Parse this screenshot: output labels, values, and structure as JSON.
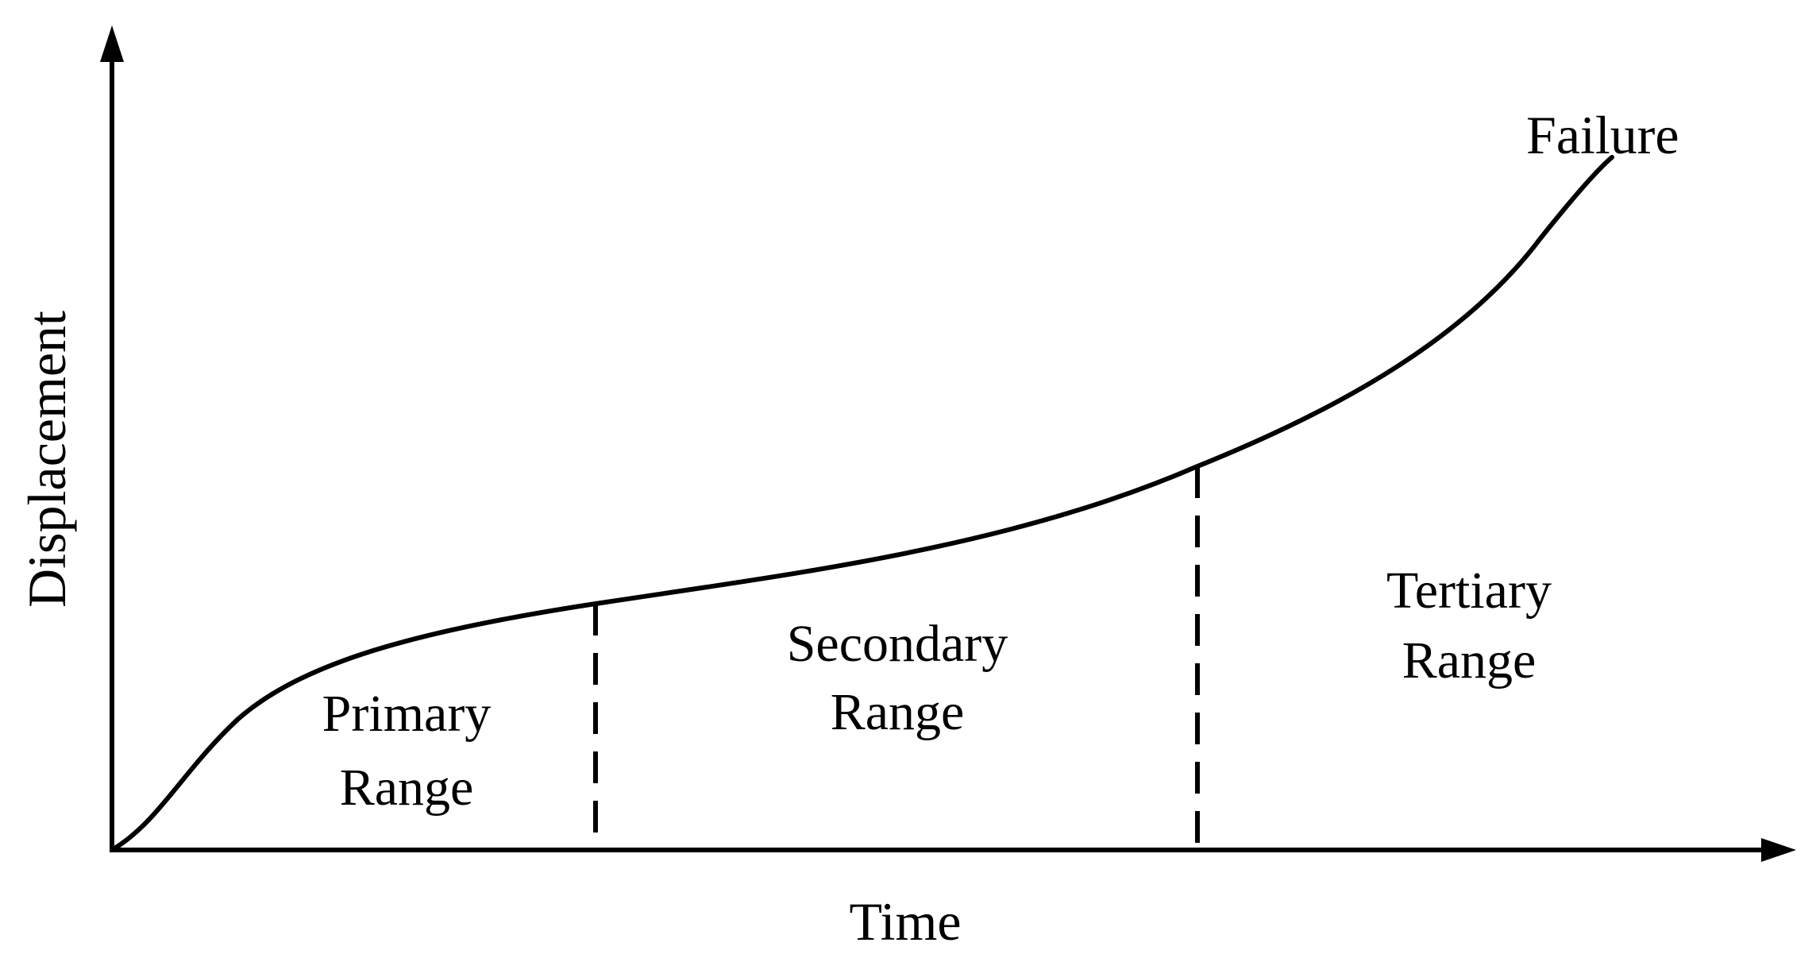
{
  "axes": {
    "x_label": "Time",
    "y_label": "Displacement"
  },
  "stages": [
    {
      "lines": [
        "Primary",
        "Range"
      ]
    },
    {
      "lines": [
        "Secondary",
        "Range"
      ]
    },
    {
      "lines": [
        "Tertiary",
        "Range"
      ]
    }
  ],
  "annotation": "Failure",
  "colors": {
    "line": "#000000",
    "background": "#ffffff"
  }
}
